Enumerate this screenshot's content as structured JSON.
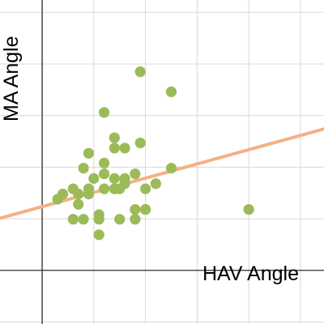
{
  "chart_data": {
    "type": "scatter",
    "title": "",
    "xlabel": "HAV Angle",
    "ylabel": "MA Angle",
    "xlim": [
      -8.16,
      54.56
    ],
    "ylim": [
      -10.4,
      52.4
    ],
    "grid": true,
    "x_grid_step": 10,
    "y_grid_step": 10,
    "point_color": "#9bbb59",
    "line_color": "#f4b183",
    "series": [
      {
        "type": "scatter",
        "points": [
          [
            3,
            13.8
          ],
          [
            4,
            14.8
          ],
          [
            6,
            15.8
          ],
          [
            7,
            14.8
          ],
          [
            7,
            12.8
          ],
          [
            6,
            9.9
          ],
          [
            8,
            19.8
          ],
          [
            9,
            15.8
          ],
          [
            9,
            14.8
          ],
          [
            9,
            22.7
          ],
          [
            10,
            17.8
          ],
          [
            11,
            10.8
          ],
          [
            12,
            30.6
          ],
          [
            12,
            20.8
          ],
          [
            12,
            18.7
          ],
          [
            11,
            9.9
          ],
          [
            11,
            6.9
          ],
          [
            12,
            15.8
          ],
          [
            14,
            25.7
          ],
          [
            14,
            23.7
          ],
          [
            14,
            17.8
          ],
          [
            14,
            15.8
          ],
          [
            15,
            15.8
          ],
          [
            15,
            9.9
          ],
          [
            16,
            23.7
          ],
          [
            16,
            17.8
          ],
          [
            16,
            16.8
          ],
          [
            18,
            18.7
          ],
          [
            18,
            11.8
          ],
          [
            18,
            9.9
          ],
          [
            19,
            24.7
          ],
          [
            20,
            15.8
          ],
          [
            20,
            11.8
          ],
          [
            22,
            16.8
          ],
          [
            25,
            34.6
          ],
          [
            25,
            19.8
          ],
          [
            19,
            38.5
          ],
          [
            20,
            11.8
          ],
          [
            8,
            9.9
          ],
          [
            40,
            11.8
          ]
        ]
      },
      {
        "type": "line",
        "points": [
          [
            -8.16,
            10.1
          ],
          [
            54.56,
            27.4
          ]
        ]
      }
    ]
  }
}
